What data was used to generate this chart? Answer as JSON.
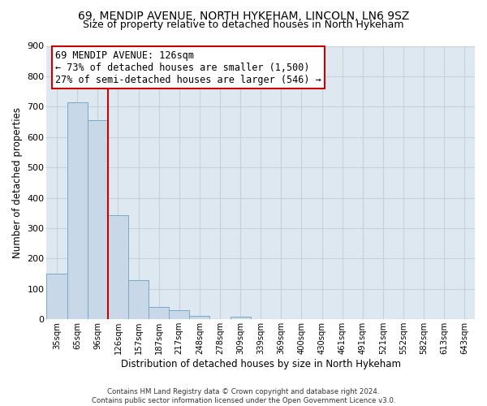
{
  "title1": "69, MENDIP AVENUE, NORTH HYKEHAM, LINCOLN, LN6 9SZ",
  "title2": "Size of property relative to detached houses in North Hykeham",
  "xlabel": "Distribution of detached houses by size in North Hykeham",
  "ylabel": "Number of detached properties",
  "bin_labels": [
    "35sqm",
    "65sqm",
    "96sqm",
    "126sqm",
    "157sqm",
    "187sqm",
    "217sqm",
    "248sqm",
    "278sqm",
    "309sqm",
    "339sqm",
    "369sqm",
    "400sqm",
    "430sqm",
    "461sqm",
    "491sqm",
    "521sqm",
    "552sqm",
    "582sqm",
    "613sqm",
    "643sqm"
  ],
  "bar_heights": [
    150,
    715,
    655,
    343,
    130,
    40,
    30,
    12,
    0,
    10,
    0,
    0,
    0,
    0,
    0,
    0,
    0,
    0,
    0,
    0,
    0
  ],
  "bar_color": "#c8d8e8",
  "bar_edge_color": "#7aaac8",
  "property_line_color": "#cc0000",
  "annotation_text": "69 MENDIP AVENUE: 126sqm\n← 73% of detached houses are smaller (1,500)\n27% of semi-detached houses are larger (546) →",
  "annotation_box_color": "#ffffff",
  "annotation_box_edge": "#cc0000",
  "ylim": [
    0,
    900
  ],
  "yticks": [
    0,
    100,
    200,
    300,
    400,
    500,
    600,
    700,
    800,
    900
  ],
  "grid_color": "#c8d0dc",
  "plot_bg_color": "#dde8f0",
  "footnote": "Contains HM Land Registry data © Crown copyright and database right 2024.\nContains public sector information licensed under the Open Government Licence v3.0.",
  "title1_fontsize": 10,
  "title2_fontsize": 9,
  "xlabel_fontsize": 8.5,
  "ylabel_fontsize": 8.5,
  "annotation_fontsize": 8.5
}
